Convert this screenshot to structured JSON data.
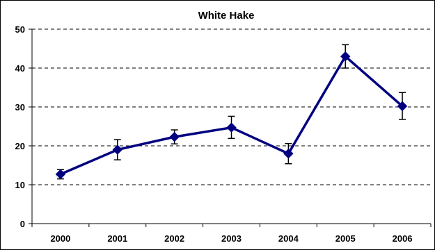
{
  "chart_data": {
    "type": "line",
    "title": "White Hake",
    "xlabel": "",
    "ylabel": "",
    "categories": [
      "2000",
      "2001",
      "2002",
      "2003",
      "2004",
      "2005",
      "2006"
    ],
    "series": [
      {
        "values": [
          12.7,
          19.0,
          22.3,
          24.7,
          18.0,
          43.0,
          30.2
        ],
        "error_low": [
          11.5,
          16.4,
          20.5,
          21.9,
          15.4,
          40.0,
          26.8
        ],
        "error_high": [
          13.9,
          21.6,
          24.1,
          27.6,
          20.6,
          46.0,
          33.7
        ]
      }
    ],
    "ylim": [
      0,
      50
    ],
    "yticks": [
      0,
      10,
      20,
      30,
      40,
      50
    ],
    "grid": "horizontal dashed",
    "legend": "none",
    "colors": {
      "line": "#000080",
      "marker": "#000080",
      "error_bar": "#000000",
      "grid": "#000000"
    }
  }
}
